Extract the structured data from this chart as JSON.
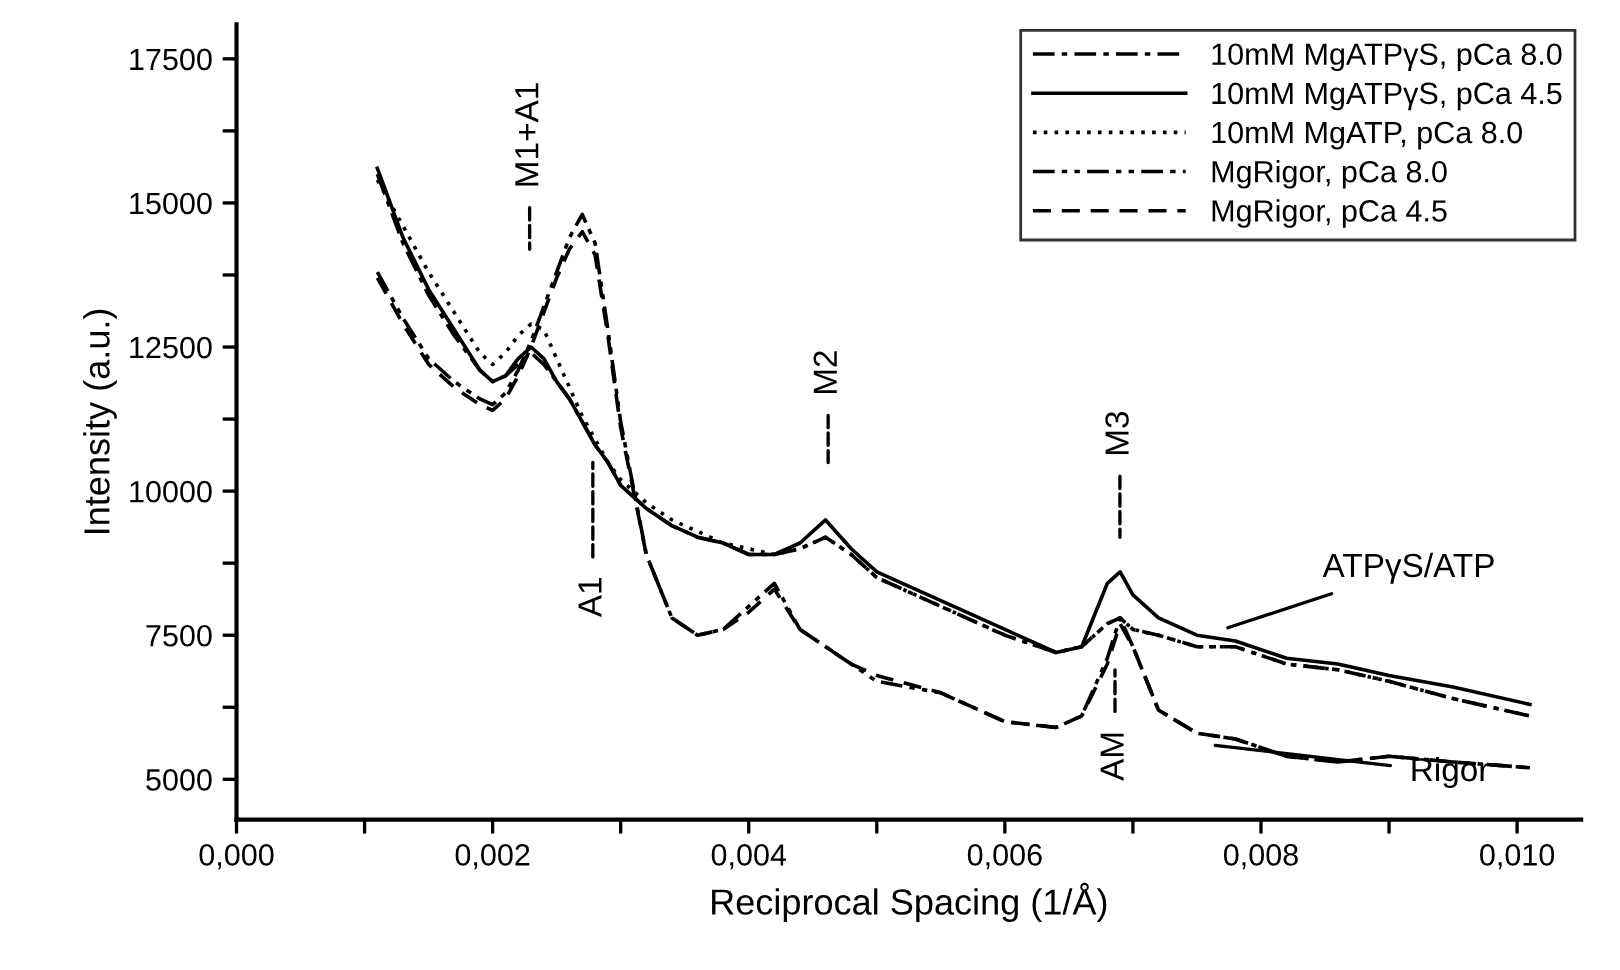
{
  "chart_data": {
    "type": "line",
    "xlabel": "Reciprocal Spacing (1/Å)",
    "ylabel": "Intensity (a.u.)",
    "x": [
      0.0011,
      0.0013,
      0.0015,
      0.0017,
      0.0019,
      0.002,
      0.0021,
      0.0022,
      0.0023,
      0.0024,
      0.0025,
      0.0026,
      0.0027,
      0.0028,
      0.0029,
      0.003,
      0.0032,
      0.0034,
      0.0036,
      0.0038,
      0.004,
      0.0042,
      0.0044,
      0.0046,
      0.0048,
      0.005,
      0.0055,
      0.006,
      0.0064,
      0.0066,
      0.0068,
      0.0069,
      0.007,
      0.0072,
      0.0075,
      0.0078,
      0.0082,
      0.0086,
      0.009,
      0.0095,
      0.0101
    ],
    "series": [
      {
        "name": "10mM MgATPγS, pCa 8.0",
        "color": "#000000",
        "line_style": "dashdot",
        "values": [
          15500,
          14300,
          13400,
          12700,
          12100,
          11900,
          12000,
          12200,
          12400,
          12200,
          11900,
          11600,
          11200,
          10800,
          10500,
          10100,
          9700,
          9400,
          9200,
          9100,
          8900,
          8900,
          9000,
          9200,
          8900,
          8500,
          8000,
          7500,
          7200,
          7300,
          7700,
          7800,
          7600,
          7500,
          7300,
          7300,
          7000,
          6900,
          6700,
          6400,
          6100
        ]
      },
      {
        "name": "10mM MgATPγS, pCa 4.5",
        "color": "#000000",
        "line_style": "solid",
        "values": [
          15600,
          14400,
          13500,
          12800,
          12100,
          11900,
          12000,
          12300,
          12500,
          12300,
          11900,
          11600,
          11200,
          10800,
          10500,
          10100,
          9700,
          9400,
          9200,
          9100,
          8900,
          8900,
          9100,
          9500,
          9000,
          8600,
          8100,
          7600,
          7200,
          7300,
          8400,
          8600,
          8200,
          7800,
          7500,
          7400,
          7100,
          7000,
          6800,
          6600,
          6300
        ]
      },
      {
        "name": "10mM MgATP, pCa 8.0",
        "color": "#000000",
        "line_style": "dotted",
        "values": [
          15400,
          14600,
          13800,
          13100,
          12400,
          12200,
          12400,
          12700,
          12900,
          12800,
          12300,
          11800,
          11300,
          10900,
          10500,
          10200,
          9800,
          9500,
          9300,
          9100,
          9000,
          8900,
          9000,
          9200,
          8900,
          8500,
          8000,
          7500,
          7200,
          7300,
          7700,
          7800,
          7600,
          7500,
          7300,
          7300,
          7000,
          6900,
          6700,
          6400,
          6100
        ]
      },
      {
        "name": "MgRigor, pCa 8.0",
        "color": "#000000",
        "line_style": "dashdotdot",
        "values": [
          13800,
          13000,
          12300,
          11900,
          11600,
          11500,
          11700,
          12100,
          12600,
          13200,
          13800,
          14400,
          14800,
          14300,
          12800,
          11200,
          8900,
          7800,
          7500,
          7600,
          8000,
          8400,
          7600,
          7300,
          7000,
          6700,
          6500,
          6000,
          5900,
          6100,
          7100,
          7800,
          7300,
          6200,
          5800,
          5700,
          5400,
          5300,
          5400,
          5300,
          5200
        ]
      },
      {
        "name": "MgRigor, pCa 4.5",
        "color": "#000000",
        "line_style": "dashed",
        "values": [
          13700,
          12900,
          12200,
          11800,
          11500,
          11400,
          11600,
          12000,
          12500,
          13100,
          13700,
          14200,
          14500,
          14100,
          12700,
          11100,
          8900,
          7800,
          7500,
          7600,
          7900,
          8300,
          7600,
          7300,
          7000,
          6800,
          6500,
          6000,
          5900,
          6100,
          7000,
          7700,
          7300,
          6200,
          5800,
          5700,
          5400,
          5300,
          5400,
          5300,
          5200
        ]
      }
    ],
    "xlim": [
      0,
      0.0105
    ],
    "ylim": [
      4300,
      18100
    ],
    "xticks": [
      {
        "value": 0,
        "label": "0,000"
      },
      {
        "value": 0.001,
        "label": null
      },
      {
        "value": 0.002,
        "label": "0,002"
      },
      {
        "value": 0.003,
        "label": null
      },
      {
        "value": 0.004,
        "label": "0,004"
      },
      {
        "value": 0.005,
        "label": null
      },
      {
        "value": 0.006,
        "label": "0,006"
      },
      {
        "value": 0.007,
        "label": null
      },
      {
        "value": 0.008,
        "label": "0,008"
      },
      {
        "value": 0.009,
        "label": null
      },
      {
        "value": 0.01,
        "label": "0,010"
      }
    ],
    "yticks": [
      5000,
      {
        "value": 6250,
        "label": null
      },
      7500,
      {
        "value": 8750,
        "label": null
      },
      10000,
      {
        "value": 11250,
        "label": null
      },
      12500,
      {
        "value": 13750,
        "label": null
      },
      15000,
      {
        "value": 16250,
        "label": null
      },
      17500
    ],
    "annotations": [
      "M1+A1",
      "A1",
      "M2",
      "M3",
      {
        "text": "AM",
        "x": 0.00686,
        "y": 6900
      },
      {
        "text": "ATPγS/ATP",
        "x": 0.0077,
        "y": 7600
      },
      {
        "text": "Rigor",
        "x": 0.0076,
        "y": 5600
      }
    ],
    "grid": false,
    "legend": "top right",
    "marker": "none"
  }
}
